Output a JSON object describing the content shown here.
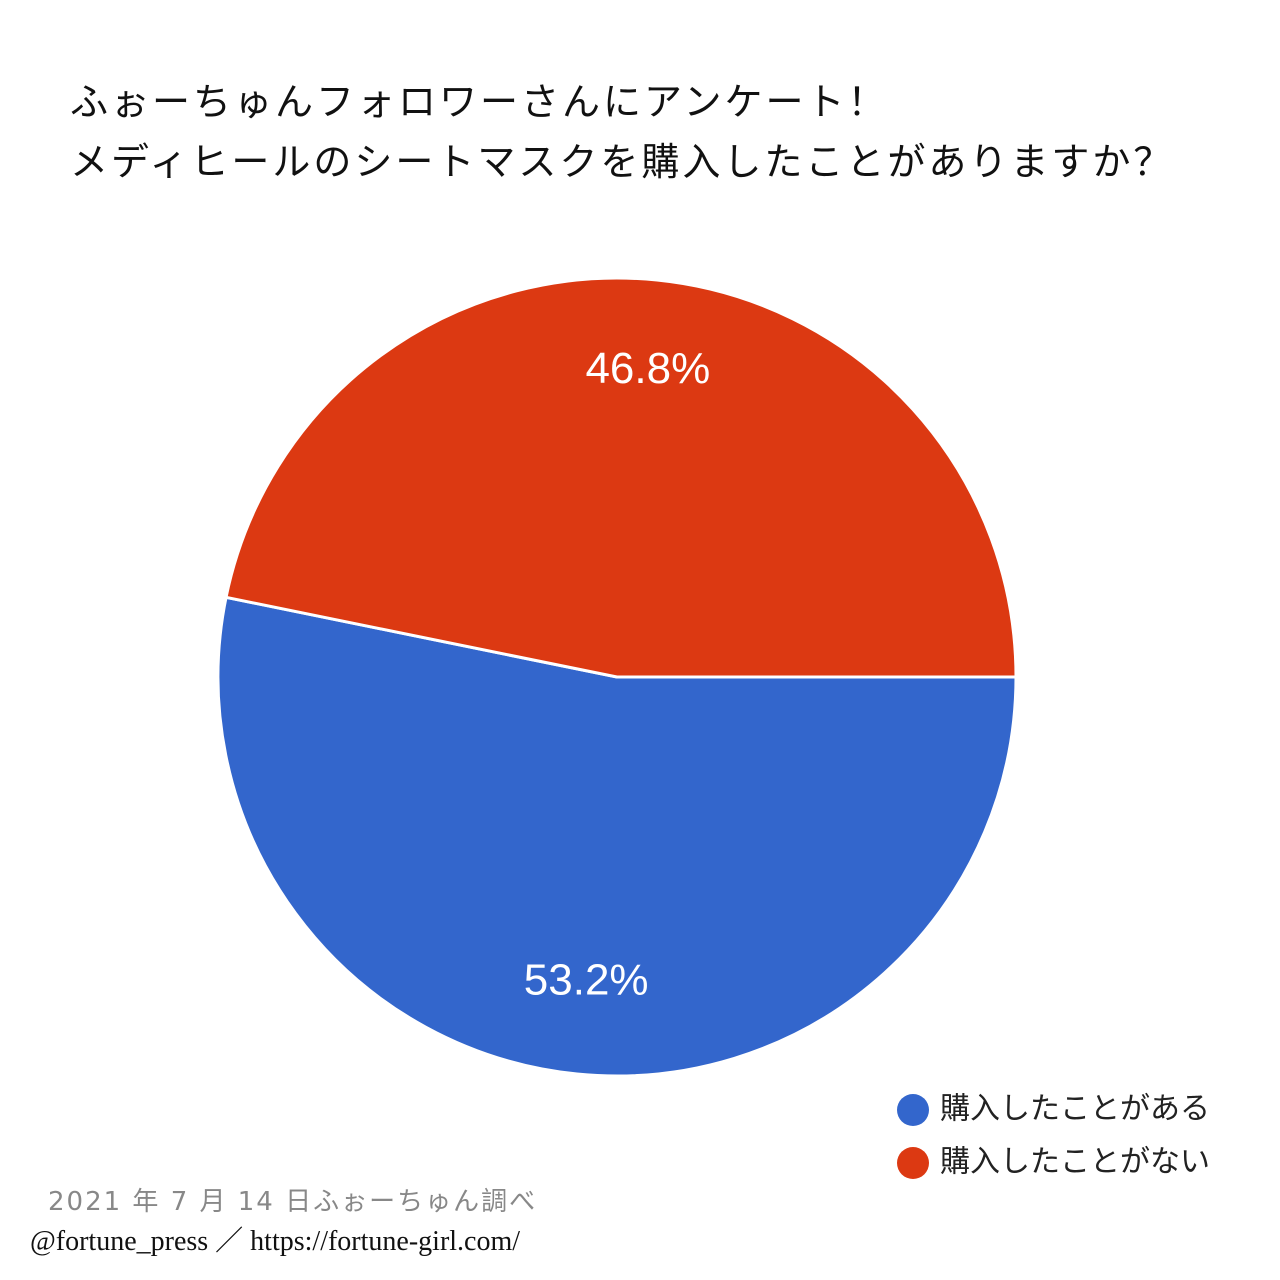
{
  "chart_data": {
    "type": "pie",
    "title": "ふぉーちゅんフォロワーさんにアンケート！",
    "subtitle": "メディヒールのシートマスクを購入したことがありますか？",
    "categories": [
      "購入したことがある",
      "購入したことがない"
    ],
    "values": [
      53.2,
      46.8
    ],
    "value_labels": [
      "53.2%",
      "46.8%"
    ],
    "colors": [
      "#3366cc",
      "#dc3912"
    ],
    "legend": "bottom-right",
    "source": "2021 年 7 月 14 日ふぉーちゅん調べ",
    "credit": "@fortune_press ／ https://fortune-girl.com/"
  }
}
